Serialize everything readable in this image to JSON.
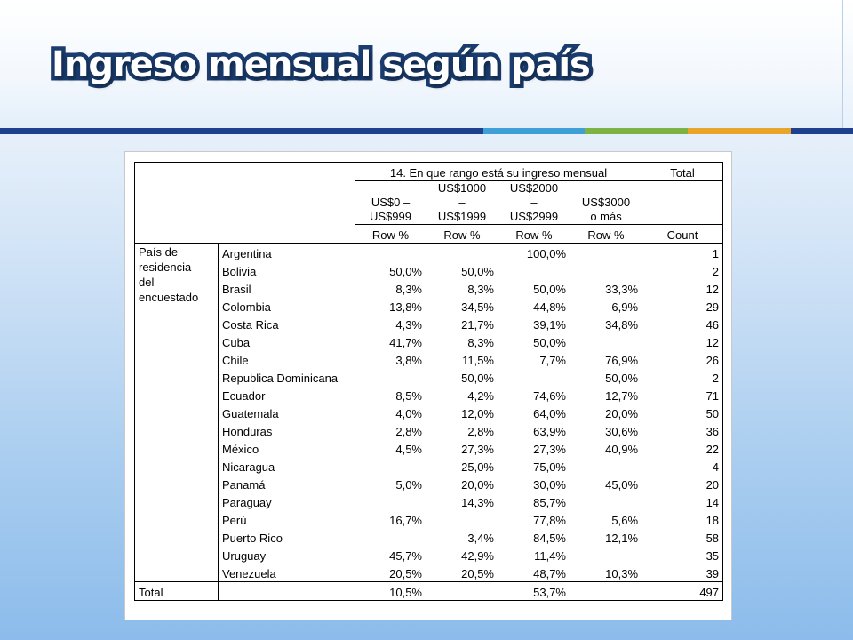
{
  "slide": {
    "title": "Ingreso mensual según país"
  },
  "colors": {
    "title_fill": "#ffffff",
    "title_outline": "#1a3c6e",
    "accent_navy": "#1f3f8f",
    "accent_blue": "#3ea0d6",
    "accent_green": "#7cb342",
    "accent_gold": "#e8a52a"
  },
  "table": {
    "question_header": "14. En que rango está su ingreso mensual",
    "total_header": "Total",
    "categories": [
      [
        "US$0 –",
        "US$999"
      ],
      [
        "US$1000",
        "–",
        "US$1999"
      ],
      [
        "US$2000",
        "–",
        "US$2999"
      ],
      [
        "US$3000",
        "o más"
      ]
    ],
    "units": [
      "Row %",
      "Row %",
      "Row %",
      "Row %",
      "Count"
    ],
    "group_label": [
      "País de",
      "residencia",
      "del",
      "encuestado"
    ],
    "rows": [
      {
        "country": "Argentina",
        "v": [
          "",
          "",
          "100,0%",
          ""
        ],
        "count": "1"
      },
      {
        "country": "Bolivia",
        "v": [
          "50,0%",
          "50,0%",
          "",
          ""
        ],
        "count": "2"
      },
      {
        "country": "Brasil",
        "v": [
          "8,3%",
          "8,3%",
          "50,0%",
          "33,3%"
        ],
        "count": "12"
      },
      {
        "country": "Colombia",
        "v": [
          "13,8%",
          "34,5%",
          "44,8%",
          "6,9%"
        ],
        "count": "29"
      },
      {
        "country": "Costa Rica",
        "v": [
          "4,3%",
          "21,7%",
          "39,1%",
          "34,8%"
        ],
        "count": "46"
      },
      {
        "country": "Cuba",
        "v": [
          "41,7%",
          "8,3%",
          "50,0%",
          ""
        ],
        "count": "12"
      },
      {
        "country": "Chile",
        "v": [
          "3,8%",
          "11,5%",
          "7,7%",
          "76,9%"
        ],
        "count": "26"
      },
      {
        "country": "Republica Dominicana",
        "v": [
          "",
          "50,0%",
          "",
          "50,0%"
        ],
        "count": "2"
      },
      {
        "country": "Ecuador",
        "v": [
          "8,5%",
          "4,2%",
          "74,6%",
          "12,7%"
        ],
        "count": "71"
      },
      {
        "country": "Guatemala",
        "v": [
          "4,0%",
          "12,0%",
          "64,0%",
          "20,0%"
        ],
        "count": "50"
      },
      {
        "country": "Honduras",
        "v": [
          "2,8%",
          "2,8%",
          "63,9%",
          "30,6%"
        ],
        "count": "36"
      },
      {
        "country": "México",
        "v": [
          "4,5%",
          "27,3%",
          "27,3%",
          "40,9%"
        ],
        "count": "22"
      },
      {
        "country": "Nicaragua",
        "v": [
          "",
          "25,0%",
          "75,0%",
          ""
        ],
        "count": "4"
      },
      {
        "country": "Panamá",
        "v": [
          "5,0%",
          "20,0%",
          "30,0%",
          "45,0%"
        ],
        "count": "20"
      },
      {
        "country": "Paraguay",
        "v": [
          "",
          "14,3%",
          "85,7%",
          ""
        ],
        "count": "14"
      },
      {
        "country": "Perú",
        "v": [
          "16,7%",
          "",
          "77,8%",
          "5,6%"
        ],
        "count": "18"
      },
      {
        "country": "Puerto Rico",
        "v": [
          "",
          "3,4%",
          "84,5%",
          "12,1%"
        ],
        "count": "58"
      },
      {
        "country": "Uruguay",
        "v": [
          "45,7%",
          "42,9%",
          "11,4%",
          ""
        ],
        "count": "35"
      },
      {
        "country": "Venezuela",
        "v": [
          "20,5%",
          "20,5%",
          "48,7%",
          "10,3%"
        ],
        "count": "39"
      }
    ],
    "total_row": {
      "label": "Total",
      "v": [
        "10,5%",
        "",
        "53,7%",
        ""
      ],
      "count": "497"
    }
  }
}
